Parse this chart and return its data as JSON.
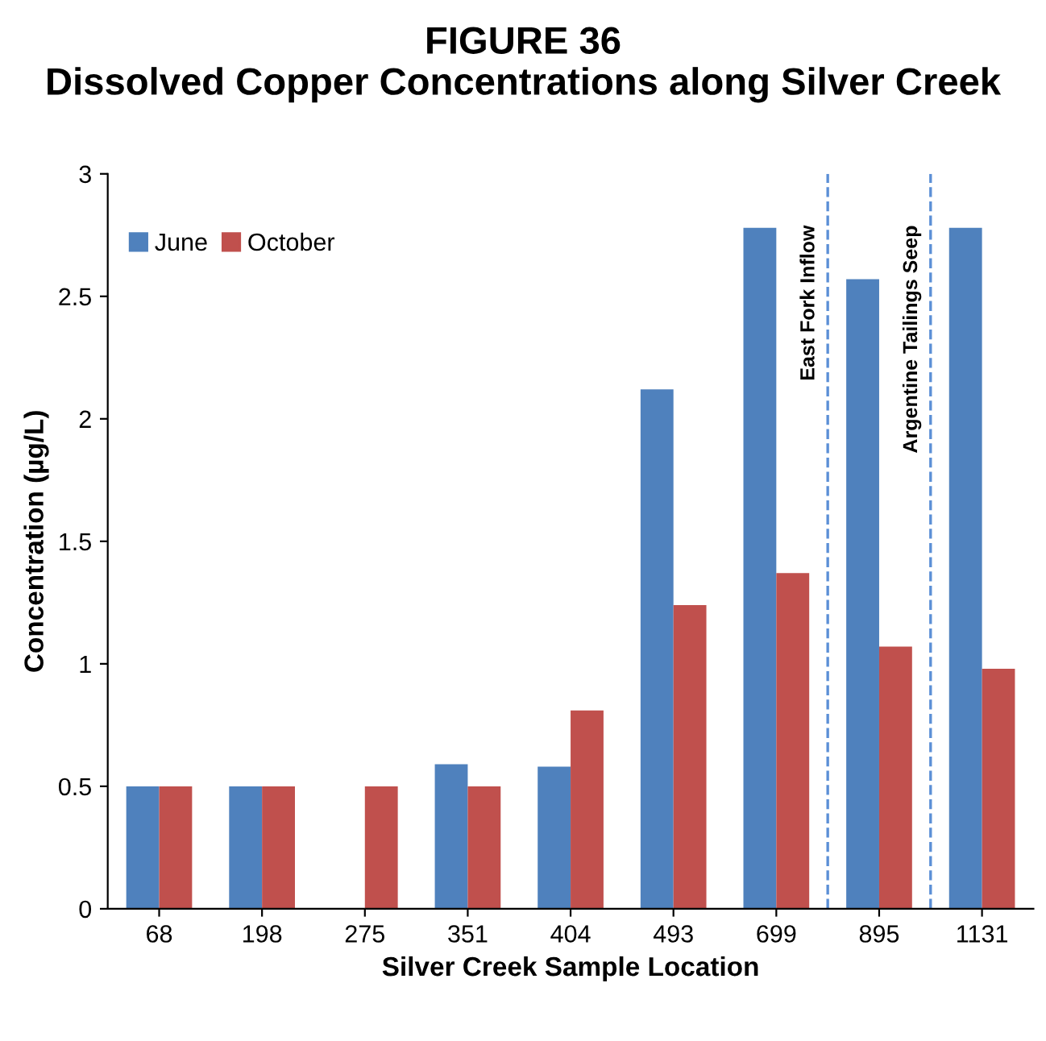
{
  "chart_data": {
    "type": "bar",
    "title": "FIGURE 36\nDissolved Copper Concentrations along Silver Creek",
    "xlabel": "Silver Creek Sample Location",
    "ylabel": "Concentration (µg/L)",
    "categories": [
      "68",
      "198",
      "275",
      "351",
      "404",
      "493",
      "699",
      "895",
      "1131"
    ],
    "series": [
      {
        "name": "June",
        "color": "#4f81bd",
        "values": [
          0.5,
          0.5,
          null,
          0.59,
          0.58,
          2.12,
          2.78,
          2.57,
          2.78
        ]
      },
      {
        "name": "October",
        "color": "#c0504d",
        "values": [
          0.5,
          0.5,
          0.5,
          0.5,
          0.81,
          1.24,
          1.37,
          1.07,
          0.98
        ]
      }
    ],
    "ylim": [
      0,
      3
    ],
    "yticks": [
      0,
      {
        "value": 0.5,
        "label": "0.5"
      },
      1,
      {
        "value": 1.5,
        "label": "1.5"
      },
      2,
      {
        "value": 2.5,
        "label": "2.5"
      },
      3
    ],
    "annotations": [
      "East Fork Inflow",
      "Argentine Tailings Seep"
    ],
    "legend": "top left",
    "grid": false
  }
}
